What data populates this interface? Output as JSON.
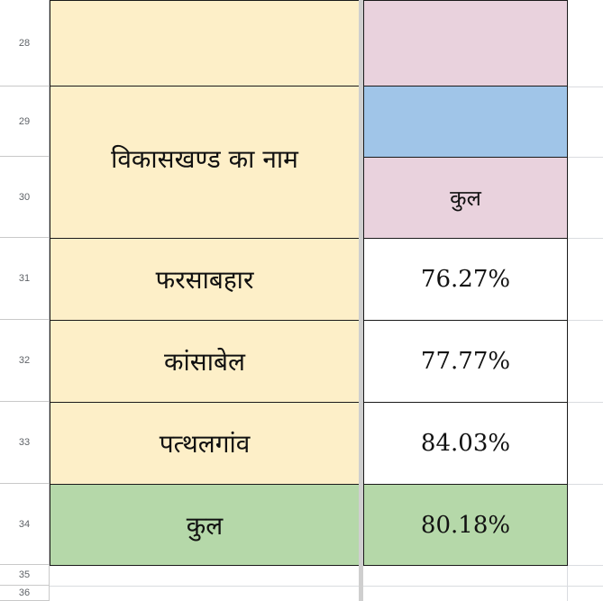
{
  "row_numbers": [
    "28",
    "29",
    "30",
    "31",
    "32",
    "33",
    "34",
    "35",
    "36"
  ],
  "header_label": "विकासखण्ड का नाम",
  "total_header": "कुल",
  "blocks": [
    {
      "name": "फरसाबहार",
      "value": "76.27%"
    },
    {
      "name": "कांसाबेल",
      "value": "77.77%"
    },
    {
      "name": "पत्थलगांव",
      "value": "84.03%"
    }
  ],
  "total_row": {
    "name": "कुल",
    "value": "80.18%"
  },
  "colors": {
    "name_fill": "#fdefc8",
    "pink_fill": "#e9d2dd",
    "blue_fill": "#a0c5e8",
    "green_fill": "#b5d8a9",
    "white_fill": "#ffffff"
  }
}
